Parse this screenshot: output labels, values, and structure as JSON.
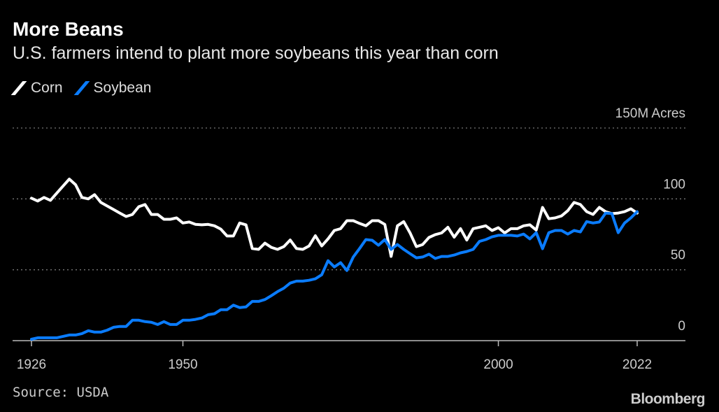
{
  "title": "More Beans",
  "subtitle": "U.S. farmers intend to plant more soybeans this year than corn",
  "source": "Source: USDA",
  "logo": "Bloomberg",
  "chart_data": {
    "type": "line",
    "title": "More Beans",
    "subtitle": "U.S. farmers intend to plant more soybeans this year than corn",
    "xlabel": "",
    "ylabel": "M Acres",
    "xlim": [
      1926,
      2022
    ],
    "ylim": [
      0,
      150
    ],
    "x_ticks": [
      1926,
      1950,
      2000,
      2022
    ],
    "y_ticks": [
      {
        "value": 150,
        "label": "150M Acres"
      },
      {
        "value": 100,
        "label": "100"
      },
      {
        "value": 50,
        "label": "50"
      },
      {
        "value": 0,
        "label": "0"
      }
    ],
    "grid": true,
    "legend_position": "top-left",
    "x_start": 1926,
    "series": [
      {
        "name": "Corn",
        "color": "#ffffff",
        "values": [
          100.5,
          98.5,
          101,
          99,
          104,
          109,
          114,
          110,
          101,
          100,
          103,
          97.5,
          95,
          92.5,
          90,
          87.6,
          89,
          94.5,
          96,
          89,
          89,
          85.6,
          85.6,
          86.6,
          83,
          83.7,
          82,
          81.7,
          82,
          81,
          78.7,
          73.8,
          73.8,
          83,
          81.7,
          65,
          64.4,
          68.8,
          65.8,
          64.4,
          66.3,
          71,
          65,
          64.4,
          66.8,
          74,
          66.8,
          71.8,
          77.7,
          79,
          84.6,
          84.6,
          82.7,
          81,
          84.6,
          84.6,
          82,
          59.4,
          81,
          84,
          76,
          66.3,
          67.8,
          72.8,
          74.8,
          76,
          80,
          73,
          79,
          71,
          79,
          80,
          81,
          77.7,
          79.7,
          76,
          79,
          79,
          81,
          81.7,
          78,
          94,
          86,
          86.6,
          88,
          91.7,
          97.5,
          96,
          91,
          89,
          94,
          91,
          89.6,
          90,
          91,
          93,
          90
        ]
      },
      {
        "name": "Soybean",
        "color": "#0a7cff",
        "values": [
          1,
          2,
          2,
          2,
          2,
          3,
          4,
          4,
          5,
          7,
          6,
          6,
          7.4,
          9.4,
          10,
          10,
          14.4,
          14.4,
          13.4,
          13,
          11.4,
          13.4,
          11.4,
          11.4,
          14.4,
          14.4,
          15,
          16,
          18.3,
          19,
          21.8,
          21.8,
          25,
          23.3,
          23.8,
          27.7,
          27.7,
          29,
          31.7,
          34.6,
          37,
          40.6,
          42,
          42,
          42.6,
          43.6,
          46.5,
          56.4,
          52,
          55,
          49.5,
          59,
          65,
          71.3,
          70.8,
          67.3,
          71.3,
          64.4,
          67.8,
          64.4,
          61.4,
          58.4,
          59,
          61,
          58,
          59.4,
          59.4,
          60.4,
          61.9,
          62.9,
          64.4,
          70,
          71.3,
          73.2,
          74.3,
          74.3,
          74.3,
          73.8,
          75.2,
          71.8,
          76.2,
          64.9,
          76.2,
          77.7,
          77.7,
          75.2,
          77.7,
          76.7,
          84,
          83,
          83.7,
          90,
          89.6,
          76.2,
          83,
          86.6,
          91
        ]
      }
    ]
  }
}
